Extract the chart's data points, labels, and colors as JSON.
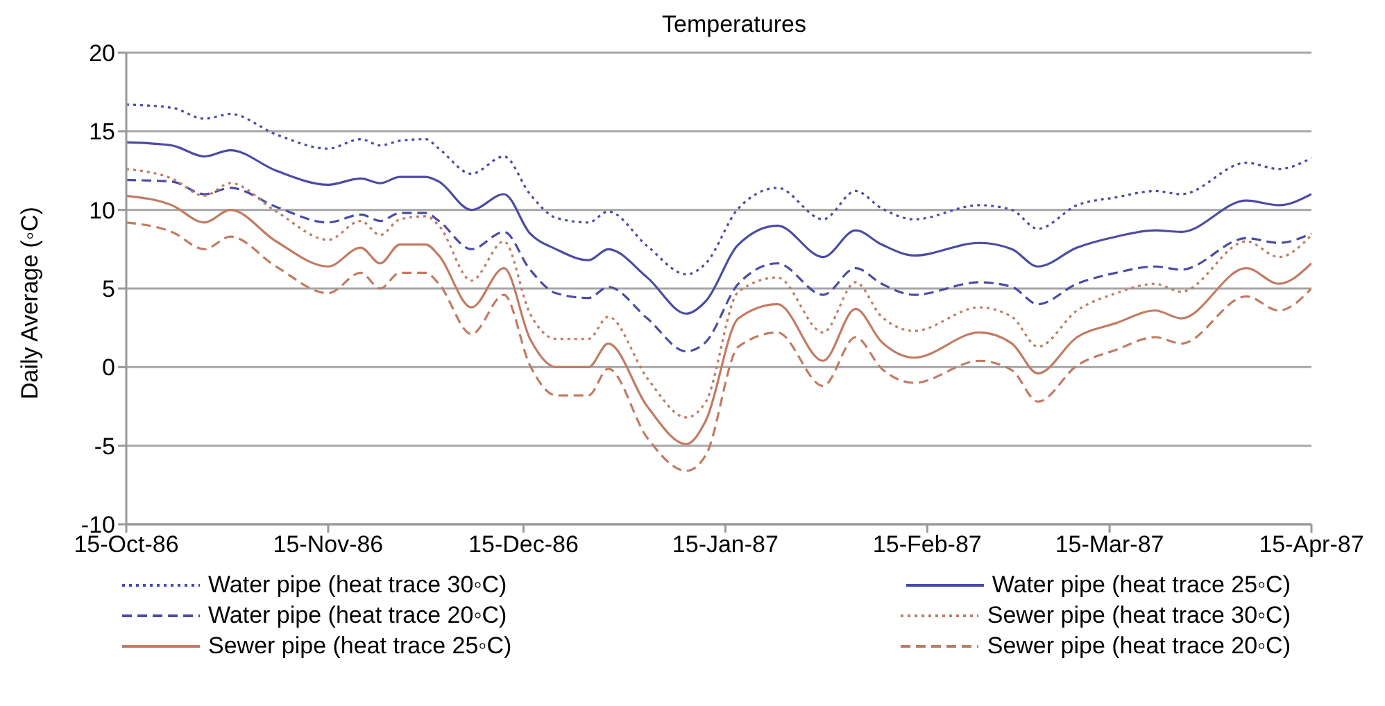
{
  "chart_data": {
    "type": "line",
    "title": "Temperatures",
    "ylabel": "Daily Average  (◦C)",
    "x": [
      "1986-10-15",
      "1986-10-22",
      "1986-10-27",
      "1986-10-31",
      "1986-11-07",
      "1986-11-15",
      "1986-11-20",
      "1986-11-23",
      "1986-11-26",
      "1986-11-30",
      "1986-12-02",
      "1986-12-07",
      "1986-12-12",
      "1986-12-16",
      "1986-12-20",
      "1986-12-25",
      "1986-12-28",
      "1987-01-03",
      "1987-01-09",
      "1987-01-12",
      "1987-01-17",
      "1987-01-23",
      "1987-01-30",
      "1987-02-04",
      "1987-02-08",
      "1987-02-13",
      "1987-02-23",
      "1987-02-28",
      "1987-03-04",
      "1987-03-10",
      "1987-03-16",
      "1987-03-22",
      "1987-03-26",
      "1987-04-05",
      "1987-04-10",
      "1987-04-15"
    ],
    "series": [
      {
        "name": "Water pipe (heat trace 30◦C)",
        "color": "#4b4ba6",
        "line_style": "dotted",
        "values": [
          16.7,
          16.5,
          15.8,
          16.1,
          14.8,
          13.9,
          14.5,
          14.1,
          14.4,
          14.5,
          13.9,
          12.3,
          13.4,
          11.0,
          9.5,
          9.2,
          9.9,
          7.7,
          5.9,
          6.6,
          10.1,
          11.4,
          9.4,
          11.2,
          10.1,
          9.4,
          10.3,
          10.0,
          8.8,
          10.3,
          10.8,
          11.2,
          11.0,
          13.0,
          12.6,
          13.3
        ]
      },
      {
        "name": "Water pipe (heat trace 25◦C)",
        "color": "#4b4ba6",
        "line_style": "solid",
        "values": [
          14.3,
          14.1,
          13.4,
          13.8,
          12.5,
          11.6,
          12.0,
          11.7,
          12.1,
          12.1,
          11.8,
          10.0,
          11.0,
          8.5,
          7.5,
          6.8,
          7.5,
          5.7,
          3.4,
          4.2,
          7.8,
          9.0,
          7.0,
          8.7,
          7.8,
          7.1,
          7.9,
          7.5,
          6.4,
          7.6,
          8.3,
          8.7,
          8.6,
          10.6,
          10.3,
          11.0
        ]
      },
      {
        "name": "Water pipe (heat trace 20◦C)",
        "color": "#4b4ba6",
        "line_style": "dashed",
        "values": [
          11.9,
          11.8,
          11.0,
          11.4,
          10.2,
          9.2,
          9.7,
          9.3,
          9.8,
          9.8,
          9.3,
          7.5,
          8.6,
          6.2,
          4.7,
          4.4,
          5.1,
          3.1,
          1.0,
          1.6,
          5.3,
          6.6,
          4.6,
          6.3,
          5.3,
          4.6,
          5.4,
          5.1,
          4.0,
          5.3,
          6.0,
          6.4,
          6.2,
          8.2,
          7.9,
          8.5
        ]
      },
      {
        "name": "Sewer pipe (heat trace 30◦C)",
        "color": "#c27b62",
        "line_style": "dotted",
        "values": [
          12.6,
          12.0,
          10.9,
          11.7,
          9.9,
          8.1,
          9.3,
          8.4,
          9.4,
          9.6,
          9.0,
          5.5,
          8.0,
          3.4,
          1.8,
          1.8,
          3.2,
          -0.7,
          -3.2,
          -2.2,
          4.8,
          5.7,
          2.2,
          5.4,
          3.2,
          2.3,
          3.8,
          3.2,
          1.3,
          3.6,
          4.7,
          5.3,
          4.8,
          8.0,
          7.0,
          8.4
        ]
      },
      {
        "name": "Sewer pipe (heat trace 25◦C)",
        "color": "#c27b62",
        "line_style": "solid",
        "values": [
          10.9,
          10.3,
          9.2,
          10.0,
          8.0,
          6.4,
          7.6,
          6.6,
          7.8,
          7.8,
          7.1,
          3.8,
          6.3,
          1.8,
          0.0,
          0.0,
          1.5,
          -2.5,
          -4.9,
          -3.4,
          3.1,
          4.0,
          0.4,
          3.7,
          1.6,
          0.6,
          2.2,
          1.5,
          -0.4,
          1.9,
          2.8,
          3.6,
          3.1,
          6.3,
          5.3,
          6.6
        ]
      },
      {
        "name": "Sewer pipe (heat trace 20◦C)",
        "color": "#c27b62",
        "line_style": "dashed",
        "values": [
          9.2,
          8.6,
          7.5,
          8.3,
          6.4,
          4.7,
          6.0,
          5.0,
          6.0,
          6.0,
          5.3,
          2.1,
          4.6,
          0.1,
          -1.8,
          -1.8,
          -0.1,
          -4.5,
          -6.6,
          -5.6,
          1.3,
          2.2,
          -1.2,
          1.9,
          -0.1,
          -1.0,
          0.4,
          -0.2,
          -2.2,
          0.1,
          1.1,
          1.9,
          1.5,
          4.5,
          3.6,
          5.0
        ]
      }
    ],
    "xlim": [
      "1986-10-15",
      "1987-04-15"
    ],
    "xticks": [
      {
        "value": "1986-10-15",
        "label": "15-Oct-86"
      },
      {
        "value": "1986-11-15",
        "label": "15-Nov-86"
      },
      {
        "value": "1986-12-15",
        "label": "15-Dec-86"
      },
      {
        "value": "1987-01-15",
        "label": "15-Jan-87"
      },
      {
        "value": "1987-02-15",
        "label": "15-Feb-87"
      },
      {
        "value": "1987-03-15",
        "label": "15-Mar-87"
      },
      {
        "value": "1987-04-15",
        "label": "15-Apr-87"
      }
    ],
    "ylim": [
      -10,
      20
    ],
    "yticks": [
      -10,
      -5,
      0,
      5,
      10,
      15,
      20
    ],
    "grid": "y",
    "legend": "bottom"
  }
}
